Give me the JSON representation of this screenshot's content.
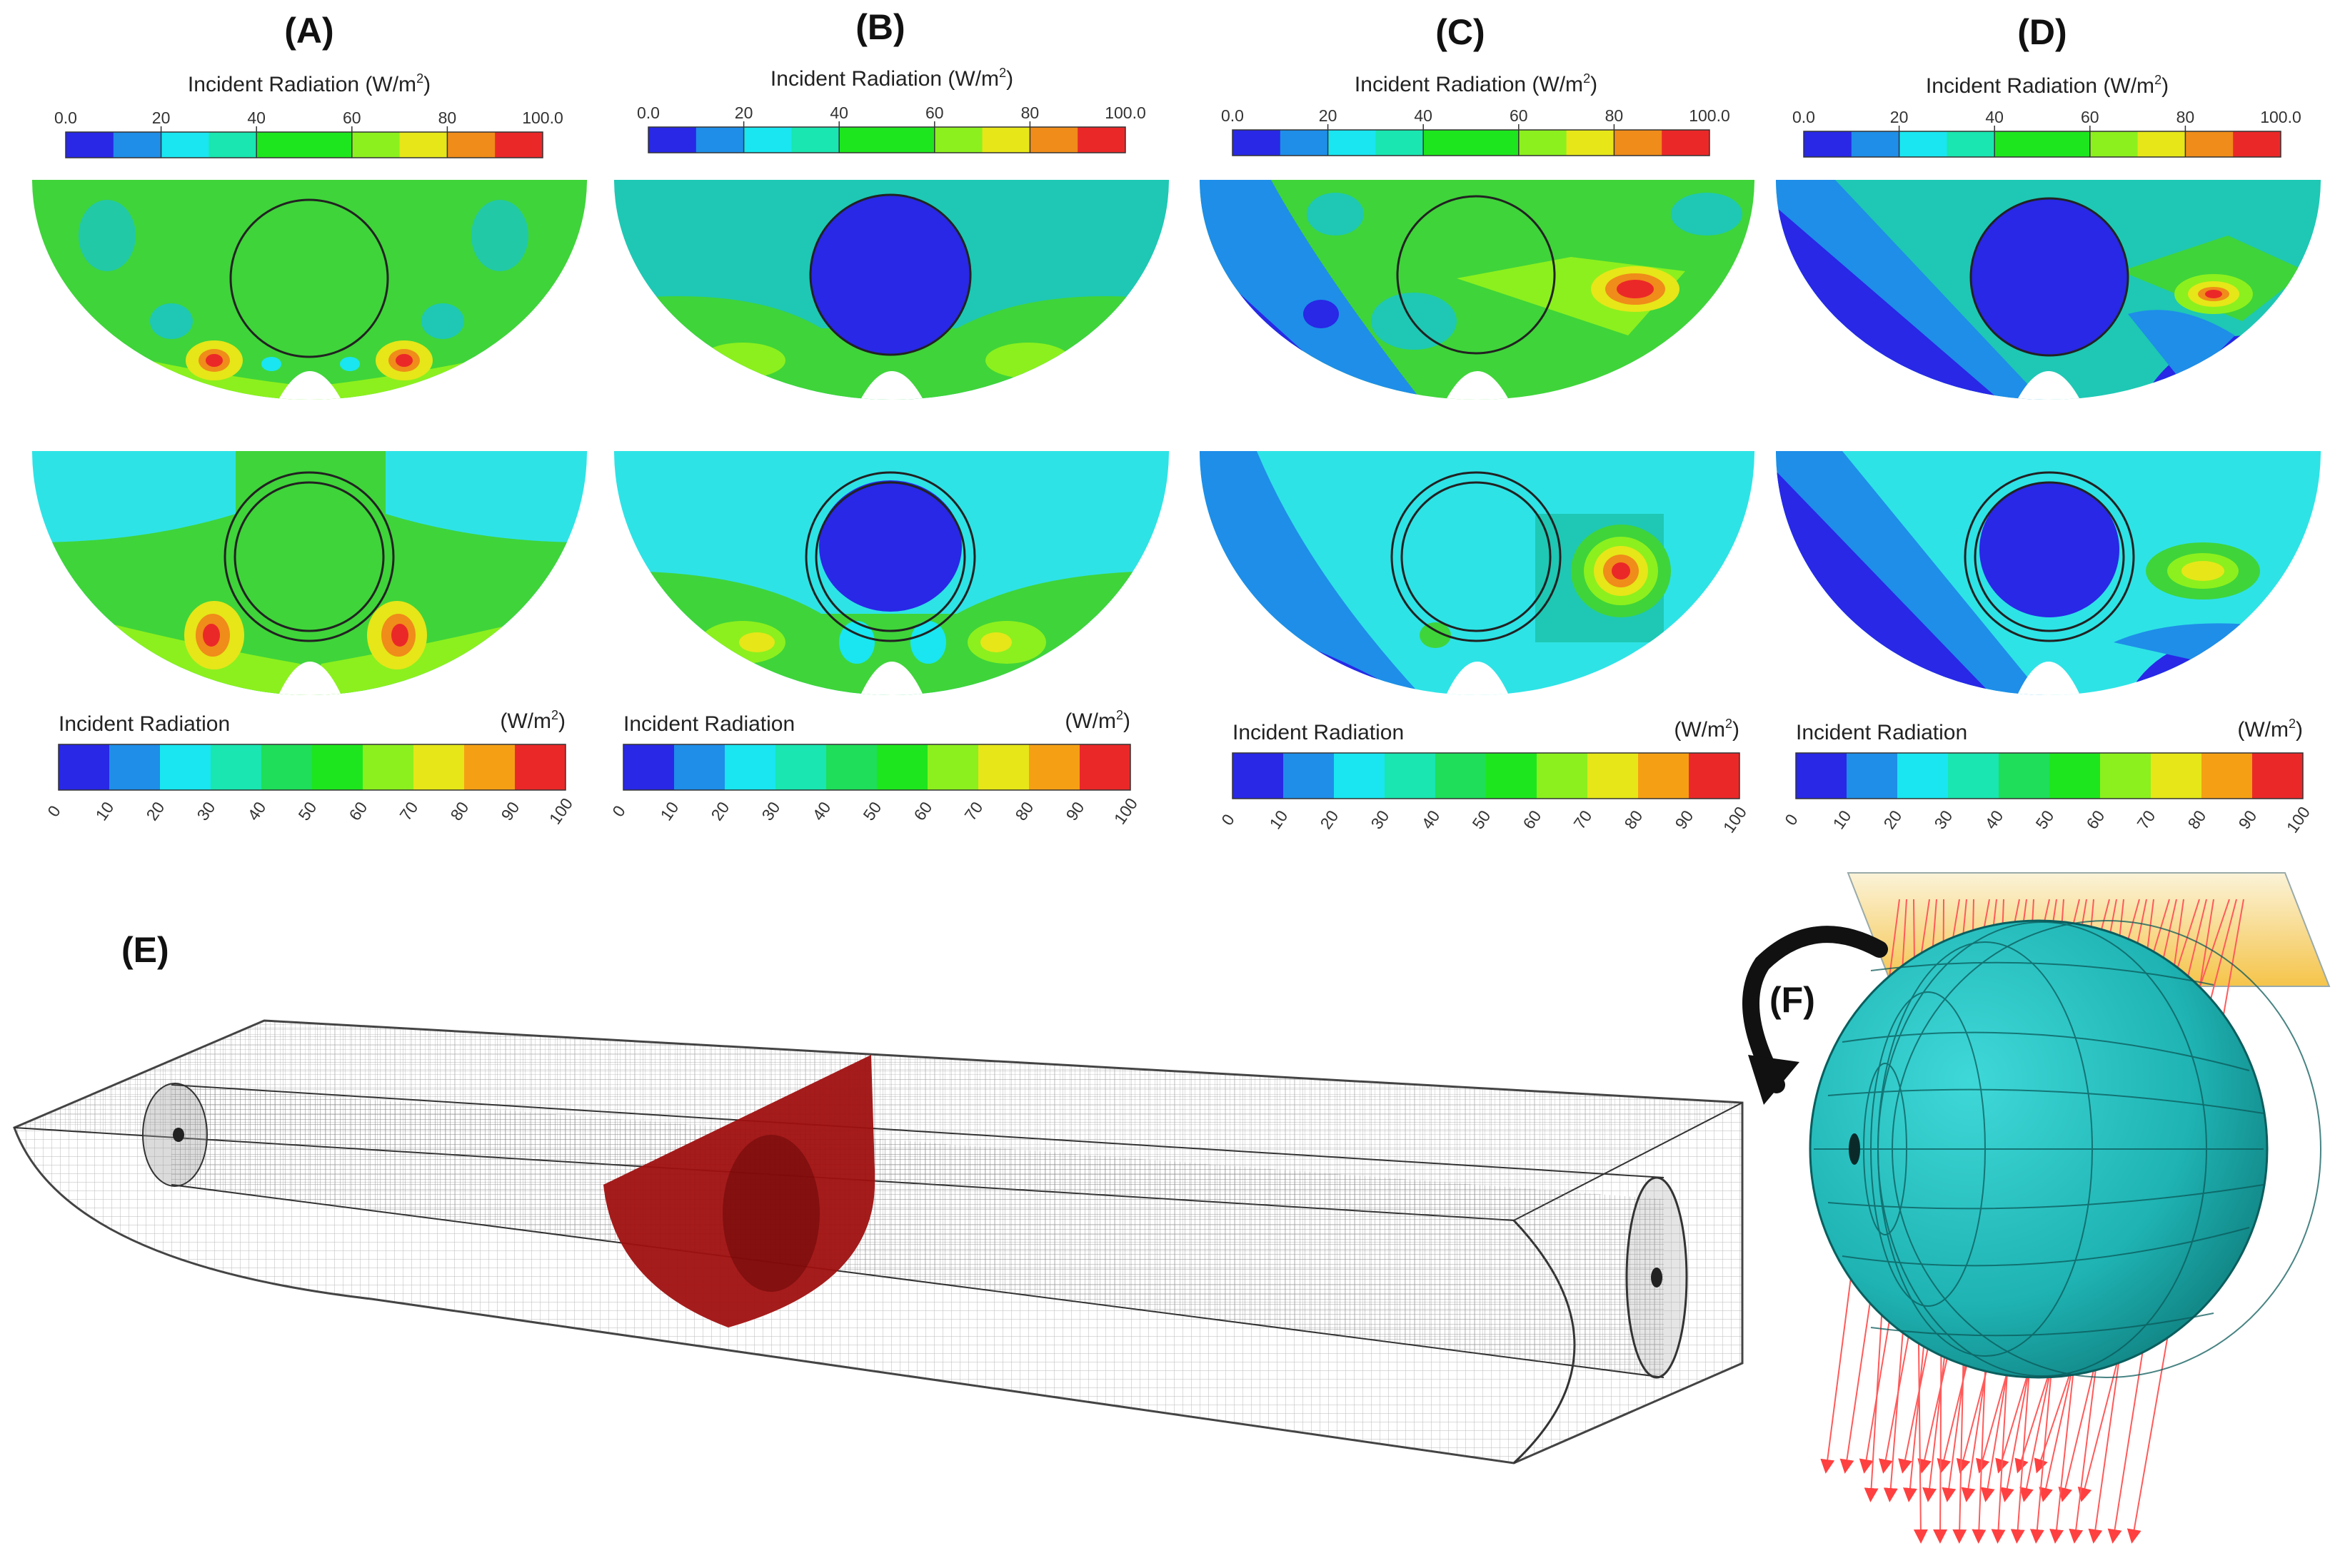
{
  "panels": [
    {
      "label": "(A)"
    },
    {
      "label": "(B)"
    },
    {
      "label": "(C)"
    },
    {
      "label": "(D)"
    }
  ],
  "panel_e_label": "(E)",
  "panel_f_label": "(F)",
  "top_colorbar": {
    "title_main": "Incident Radiation (W/m",
    "title_sup": "2",
    "title_end": ")",
    "tick_labels": [
      "0.0",
      "20",
      "40",
      "60",
      "80",
      "100.0"
    ],
    "colors": [
      "#2828e6",
      "#1e8ee8",
      "#19e6f0",
      "#19e6b0",
      "#1ee61e",
      "#1ee61e",
      "#8cf01e",
      "#e6e619",
      "#f08c19",
      "#eb2828"
    ]
  },
  "bottom_colorbar": {
    "title": "Incident Radiation",
    "unit_main": "(W/m",
    "unit_sup": "2",
    "unit_end": ")",
    "tick_labels": [
      "0",
      "10",
      "20",
      "30",
      "40",
      "50",
      "60",
      "70",
      "80",
      "90",
      "100"
    ],
    "colors": [
      "#2828e6",
      "#1e8ee8",
      "#19e6f0",
      "#19e6b0",
      "#1ede5a",
      "#1ee61e",
      "#8cf01e",
      "#e6e619",
      "#f5a014",
      "#eb2828"
    ]
  },
  "colors": {
    "field_green": "#3fd43a",
    "field_teal": "#1ec8b4",
    "field_cyan": "#2ee3e6",
    "field_blue": "#2a2ae0",
    "hot_red": "#e02020",
    "mesh_gray": "#8a8a8a",
    "cut_red": "#a01010",
    "sphere": "#1fb3b3",
    "ray": "#ff5050",
    "source": "#f8d870",
    "arrow": "#111111"
  }
}
